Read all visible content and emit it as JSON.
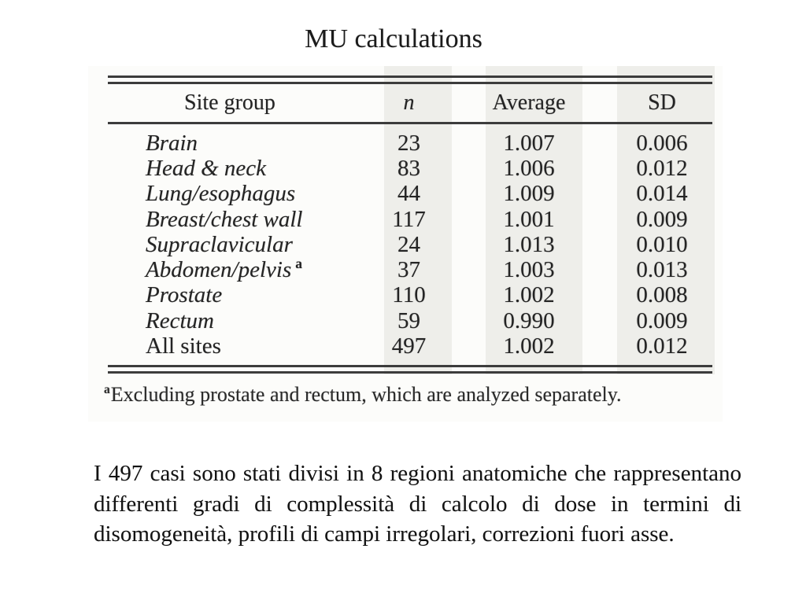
{
  "slide": {
    "title": "MU calculations"
  },
  "table": {
    "headers": {
      "site": "Site group",
      "n": "n",
      "average": "Average",
      "sd": "SD"
    },
    "rows": [
      {
        "site": "Brain",
        "n": "23",
        "average": "1.007",
        "sd": "0.006"
      },
      {
        "site": "Head & neck",
        "n": "83",
        "average": "1.006",
        "sd": "0.012"
      },
      {
        "site": "Lung/esophagus",
        "n": "44",
        "average": "1.009",
        "sd": "0.014"
      },
      {
        "site": "Breast/chest wall",
        "n": "117",
        "average": "1.001",
        "sd": "0.009"
      },
      {
        "site": "Supraclavicular",
        "n": "24",
        "average": "1.013",
        "sd": "0.010"
      },
      {
        "site": "Abdomen/pelvis",
        "sup": "a",
        "n": "37",
        "average": "1.003",
        "sd": "0.013"
      },
      {
        "site": "Prostate",
        "n": "110",
        "average": "1.002",
        "sd": "0.008"
      },
      {
        "site": "Rectum",
        "n": "59",
        "average": "0.990",
        "sd": "0.009"
      },
      {
        "site": "All sites",
        "n": "497",
        "average": "1.002",
        "sd": "0.012"
      }
    ],
    "footnote": {
      "marker": "a",
      "text": "Excluding prostate and rectum, which are analyzed separately."
    }
  },
  "body_text": {
    "lines": [
      "I 497 casi sono stati divisi in 8 regioni anatomiche che rappresentano",
      "differenti gradi di complessità di calcolo di dose in termini di",
      "disomogeneità, profili di campi irregolari, correzioni fuori asse."
    ]
  }
}
